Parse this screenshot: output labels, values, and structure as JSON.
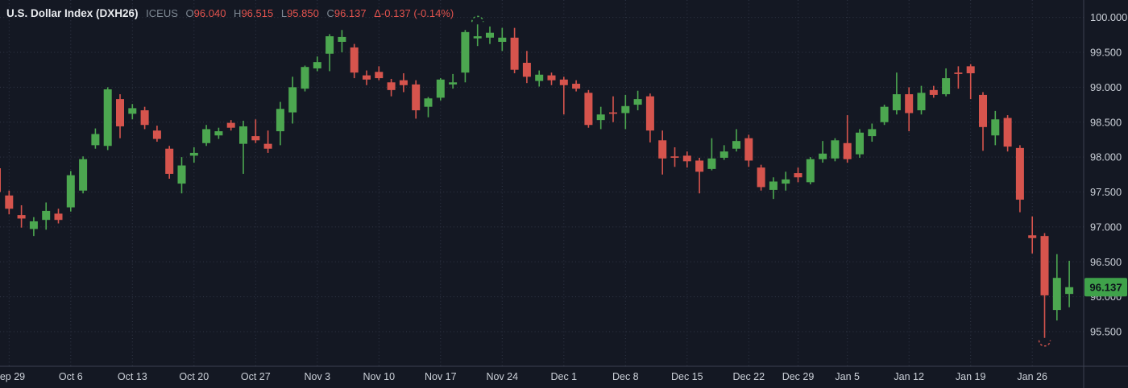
{
  "header": {
    "title": "U.S. Dollar Index (DXH26)",
    "exchange": "ICEUS",
    "ohlc": [
      {
        "label": "O",
        "value": "96.040"
      },
      {
        "label": "H",
        "value": "96.515"
      },
      {
        "label": "L",
        "value": "95.850"
      },
      {
        "label": "C",
        "value": "96.137"
      }
    ],
    "change": "Δ-0.137 (-0.14%)"
  },
  "price_axis": {
    "labels": [
      "100.000",
      "99.500",
      "99.000",
      "98.500",
      "98.000",
      "97.500",
      "97.000",
      "96.500",
      "96.000",
      "95.500"
    ],
    "last_price_badge": "96.137"
  },
  "time_axis": {
    "labels": [
      {
        "text": "Sep 29",
        "candle": 1
      },
      {
        "text": "Oct 6",
        "candle": 6
      },
      {
        "text": "Oct 13",
        "candle": 11
      },
      {
        "text": "Oct 20",
        "candle": 16
      },
      {
        "text": "Oct 27",
        "candle": 21
      },
      {
        "text": "Nov 3",
        "candle": 26
      },
      {
        "text": "Nov 10",
        "candle": 31
      },
      {
        "text": "Nov 17",
        "candle": 36
      },
      {
        "text": "Nov 24",
        "candle": 41
      },
      {
        "text": "Dec 1",
        "candle": 46
      },
      {
        "text": "Dec 8",
        "candle": 51
      },
      {
        "text": "Dec 15",
        "candle": 56
      },
      {
        "text": "Dec 22",
        "candle": 61
      },
      {
        "text": "Dec 29",
        "candle": 65
      },
      {
        "text": "Jan 5",
        "candle": 69
      },
      {
        "text": "Jan 12",
        "candle": 74
      },
      {
        "text": "Jan 19",
        "candle": 79
      },
      {
        "text": "Jan 26",
        "candle": 84
      }
    ]
  },
  "chart_data": {
    "type": "candlestick",
    "title": "U.S. Dollar Index (DXH26)",
    "symbol": "DXH26",
    "interval": "1 day",
    "ylim": [
      95.2,
      100.15
    ],
    "grid": "dotted",
    "ohlc_last": {
      "open": 96.04,
      "high": 96.515,
      "low": 95.85,
      "close": 96.137,
      "change": -0.137,
      "change_pct": -0.14
    },
    "candles": [
      [
        97.84,
        97.9,
        97.46,
        97.5
      ],
      [
        97.45,
        97.52,
        97.18,
        97.26
      ],
      [
        97.17,
        97.31,
        96.99,
        97.12
      ],
      [
        96.97,
        97.14,
        96.87,
        97.08
      ],
      [
        97.1,
        97.35,
        96.96,
        97.23
      ],
      [
        97.19,
        97.26,
        97.05,
        97.1
      ],
      [
        97.28,
        97.8,
        97.22,
        97.74
      ],
      [
        97.52,
        98.01,
        97.48,
        97.97
      ],
      [
        98.17,
        98.41,
        98.12,
        98.33
      ],
      [
        98.16,
        99.0,
        98.1,
        98.97
      ],
      [
        98.83,
        98.9,
        98.27,
        98.44
      ],
      [
        98.62,
        98.76,
        98.54,
        98.7
      ],
      [
        98.67,
        98.72,
        98.4,
        98.46
      ],
      [
        98.38,
        98.45,
        98.22,
        98.26
      ],
      [
        98.12,
        98.16,
        97.69,
        97.76
      ],
      [
        97.62,
        98.0,
        97.48,
        97.88
      ],
      [
        98.02,
        98.14,
        97.92,
        98.06
      ],
      [
        98.2,
        98.46,
        98.16,
        98.4
      ],
      [
        98.31,
        98.42,
        98.26,
        98.37
      ],
      [
        98.49,
        98.53,
        98.38,
        98.42
      ],
      [
        98.19,
        98.52,
        97.76,
        98.44
      ],
      [
        98.3,
        98.54,
        98.2,
        98.24
      ],
      [
        98.19,
        98.38,
        98.06,
        98.12
      ],
      [
        98.37,
        98.79,
        98.17,
        98.69
      ],
      [
        98.64,
        99.15,
        98.48,
        99.0
      ],
      [
        98.98,
        99.31,
        98.94,
        99.29
      ],
      [
        99.27,
        99.44,
        99.23,
        99.36
      ],
      [
        99.48,
        99.76,
        99.23,
        99.73
      ],
      [
        99.65,
        99.82,
        99.5,
        99.72
      ],
      [
        99.57,
        99.62,
        99.13,
        99.21
      ],
      [
        99.17,
        99.24,
        99.03,
        99.11
      ],
      [
        99.22,
        99.3,
        99.1,
        99.13
      ],
      [
        99.07,
        99.12,
        98.87,
        98.96
      ],
      [
        99.1,
        99.2,
        98.93,
        99.03
      ],
      [
        99.04,
        99.1,
        98.55,
        98.67
      ],
      [
        98.72,
        98.86,
        98.57,
        98.84
      ],
      [
        98.85,
        99.13,
        98.81,
        99.11
      ],
      [
        99.04,
        99.19,
        98.98,
        99.07
      ],
      [
        99.21,
        99.82,
        99.07,
        99.79
      ],
      [
        99.7,
        99.9,
        99.59,
        99.73
      ],
      [
        99.71,
        99.87,
        99.62,
        99.78
      ],
      [
        99.65,
        99.85,
        99.52,
        99.71
      ],
      [
        99.71,
        99.85,
        99.2,
        99.25
      ],
      [
        99.35,
        99.52,
        99.06,
        99.15
      ],
      [
        99.09,
        99.24,
        99.01,
        99.18
      ],
      [
        99.17,
        99.21,
        99.03,
        99.1
      ],
      [
        99.11,
        99.15,
        98.61,
        99.03
      ],
      [
        99.05,
        99.1,
        98.94,
        98.98
      ],
      [
        98.92,
        98.96,
        98.42,
        98.46
      ],
      [
        98.53,
        98.72,
        98.4,
        98.61
      ],
      [
        98.64,
        98.87,
        98.5,
        98.62
      ],
      [
        98.63,
        98.89,
        98.4,
        98.73
      ],
      [
        98.75,
        98.95,
        98.67,
        98.83
      ],
      [
        98.87,
        98.91,
        98.21,
        98.38
      ],
      [
        98.24,
        98.38,
        97.75,
        97.98
      ],
      [
        98.01,
        98.14,
        97.86,
        97.99
      ],
      [
        98.02,
        98.08,
        97.85,
        97.94
      ],
      [
        97.95,
        97.99,
        97.48,
        97.79
      ],
      [
        97.83,
        98.27,
        97.81,
        97.98
      ],
      [
        97.99,
        98.17,
        97.96,
        98.08
      ],
      [
        98.12,
        98.4,
        98.08,
        98.23
      ],
      [
        98.27,
        98.32,
        97.86,
        97.95
      ],
      [
        97.85,
        97.89,
        97.52,
        97.57
      ],
      [
        97.53,
        97.71,
        97.4,
        97.65
      ],
      [
        97.62,
        97.79,
        97.52,
        97.68
      ],
      [
        97.77,
        97.85,
        97.64,
        97.71
      ],
      [
        97.64,
        98.0,
        97.61,
        97.97
      ],
      [
        97.97,
        98.23,
        97.92,
        98.05
      ],
      [
        97.98,
        98.27,
        97.94,
        98.24
      ],
      [
        98.2,
        98.6,
        97.92,
        97.97
      ],
      [
        98.04,
        98.4,
        97.99,
        98.35
      ],
      [
        98.3,
        98.48,
        98.22,
        98.4
      ],
      [
        98.5,
        98.75,
        98.46,
        98.72
      ],
      [
        98.67,
        99.21,
        98.61,
        98.9
      ],
      [
        98.9,
        99.0,
        98.37,
        98.63
      ],
      [
        98.67,
        99.02,
        98.61,
        98.92
      ],
      [
        98.96,
        99.02,
        98.85,
        98.89
      ],
      [
        98.9,
        99.27,
        98.87,
        99.13
      ],
      [
        99.21,
        99.3,
        98.98,
        99.19
      ],
      [
        99.3,
        99.33,
        98.83,
        99.2
      ],
      [
        98.89,
        98.93,
        98.09,
        98.43
      ],
      [
        98.31,
        98.66,
        98.17,
        98.54
      ],
      [
        98.56,
        98.6,
        98.08,
        98.15
      ],
      [
        98.13,
        98.17,
        97.21,
        97.39
      ],
      [
        96.88,
        97.15,
        96.62,
        96.84
      ],
      [
        96.87,
        96.91,
        95.41,
        96.02
      ],
      [
        95.81,
        96.61,
        95.66,
        96.27
      ],
      [
        96.04,
        96.515,
        95.85,
        96.137
      ]
    ],
    "markers": {
      "highest_high_candle": 39,
      "lowest_low_candle": 85
    },
    "colors": {
      "up": "#4CA750",
      "down": "#D6544D",
      "badge_bg": "#3FA24A",
      "badge_text": "#0E141C",
      "background": "#141823",
      "grid": "#303646",
      "axis_line": "#3C4150",
      "axis_text": "#CBD0D8",
      "marker_high": "#4CA750",
      "marker_low": "#C9504B"
    }
  }
}
